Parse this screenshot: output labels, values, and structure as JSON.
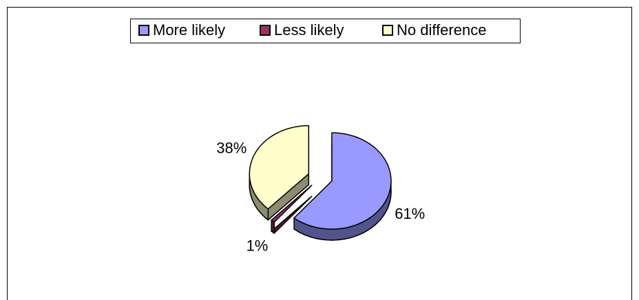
{
  "chart_data": {
    "type": "pie",
    "categories": [
      "More likely",
      "Less likely",
      "No difference"
    ],
    "values": [
      61,
      1,
      38
    ],
    "value_labels": [
      "61%",
      "1%",
      "38%"
    ],
    "colors": [
      "#9999ff",
      "#993366",
      "#ffffcc"
    ],
    "legend": "top"
  }
}
